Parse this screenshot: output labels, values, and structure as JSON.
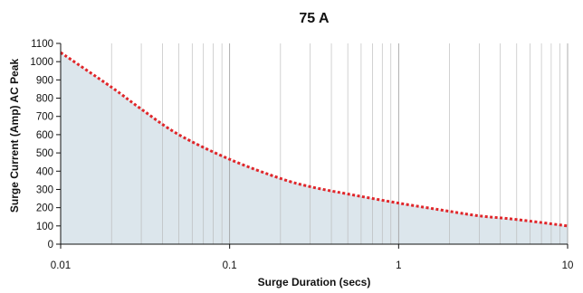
{
  "chart_data": {
    "type": "area",
    "title": "75 A",
    "xlabel": "Surge Duration (secs)",
    "ylabel": "Surge Current (Amp) AC Peak",
    "x_scale": "log",
    "xlim": [
      0.01,
      10
    ],
    "ylim": [
      0,
      1100
    ],
    "x_ticks": [
      "0.01",
      "0.1",
      "1",
      "10"
    ],
    "y_ticks": [
      "0",
      "100",
      "200",
      "300",
      "400",
      "500",
      "600",
      "700",
      "800",
      "900",
      "1000",
      "1100"
    ],
    "grid": true,
    "colors": {
      "line": "#e0262a",
      "fill": "#dce6ec"
    },
    "series": [
      {
        "x": [
          0.01,
          0.02,
          0.03,
          0.05,
          0.1,
          0.2,
          0.3,
          0.5,
          1,
          2,
          3,
          5,
          10
        ],
        "y": [
          1050,
          860,
          740,
          600,
          465,
          360,
          315,
          275,
          225,
          180,
          155,
          135,
          100
        ]
      }
    ]
  }
}
